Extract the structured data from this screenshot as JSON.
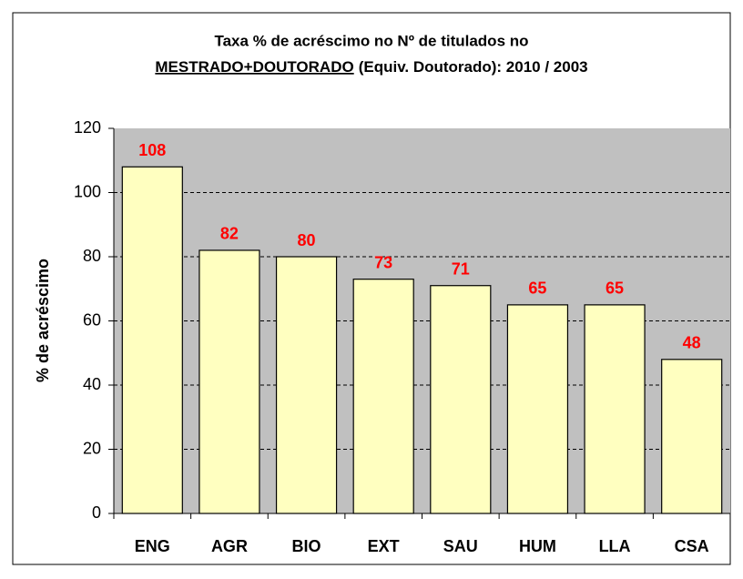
{
  "chart_data": {
    "type": "bar",
    "title": [
      "Taxa % de acréscimo no Nº de titulados no",
      "MESTRADO+DOUTORADO",
      "(Equiv. Doutorado): 2010 / 2003"
    ],
    "ylabel": "% de acréscimo",
    "categories": [
      "ENG",
      "AGR",
      "BIO",
      "EXT",
      "SAU",
      "HUM",
      "LLA",
      "CSA"
    ],
    "values": [
      108,
      82,
      80,
      73,
      71,
      65,
      65,
      48
    ],
    "color": "#ffffc0",
    "ylim": [
      0,
      120
    ],
    "yticks": [
      0,
      20,
      40,
      60,
      80,
      100,
      120
    ],
    "grid": true
  }
}
